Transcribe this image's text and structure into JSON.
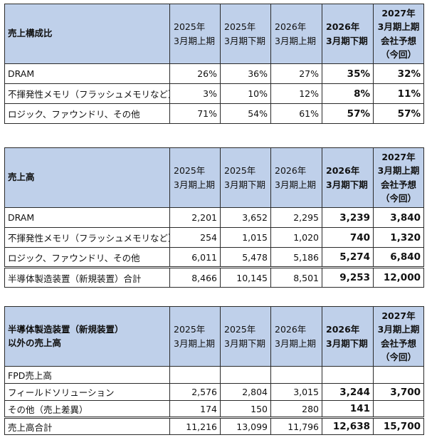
{
  "columns": [
    [
      "2025年",
      "3月期上期"
    ],
    [
      "2025年",
      "3月期下期"
    ],
    [
      "2026年",
      "3月期上期"
    ],
    [
      "2026年",
      "3月期下期"
    ],
    [
      "2027年",
      "3月期上期",
      "会社予想",
      "（今回）"
    ]
  ],
  "table1": {
    "title": "売上構成比",
    "rows": [
      {
        "label": "DRAM",
        "values": [
          "26%",
          "36%",
          "27%",
          "35%",
          "32%"
        ]
      },
      {
        "label": "不揮発性メモリ（フラッシュメモリなど）",
        "values": [
          "3%",
          "10%",
          "12%",
          "8%",
          "11%"
        ]
      },
      {
        "label": "ロジック、ファウンドリ、その他",
        "values": [
          "71%",
          "54%",
          "61%",
          "57%",
          "57%"
        ]
      }
    ]
  },
  "table2": {
    "title": "売上高",
    "rows": [
      {
        "label": "DRAM",
        "values": [
          "2,201",
          "3,652",
          "2,295",
          "3,239",
          "3,840"
        ]
      },
      {
        "label": "不揮発性メモリ（フラッシュメモリなど）",
        "values": [
          "254",
          "1,015",
          "1,020",
          "740",
          "1,320"
        ]
      },
      {
        "label": "ロジック、ファウンドリ、その他",
        "values": [
          "6,011",
          "5,478",
          "5,186",
          "5,274",
          "6,840"
        ]
      }
    ],
    "total": {
      "label": "半導体製造装置（新規装置）合計",
      "values": [
        "8,466",
        "10,145",
        "8,501",
        "9,253",
        "12,000"
      ]
    }
  },
  "table3": {
    "title_line1": "半導体製造装置（新規装置）",
    "title_line2": "以外の売上高",
    "rows": [
      {
        "label": "FPD売上高",
        "values": [
          "",
          "",
          "",
          "",
          ""
        ]
      },
      {
        "label": "フィールドソリューション",
        "values": [
          "2,576",
          "2,804",
          "3,015",
          "3,244",
          "3,700"
        ]
      },
      {
        "label": "その他（売上差異）",
        "values": [
          "174",
          "150",
          "280",
          "141",
          ""
        ]
      }
    ],
    "total": {
      "label": "売上高合計",
      "values": [
        "11,216",
        "13,099",
        "11,796",
        "12,638",
        "15,700"
      ]
    }
  }
}
